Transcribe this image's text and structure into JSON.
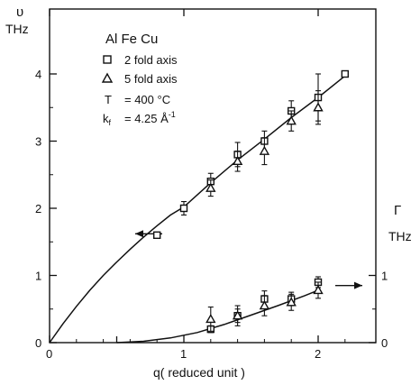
{
  "chart_data": {
    "type": "scatter",
    "title": "",
    "xlabel": "q( reduced unit )",
    "ylabel_left": [
      "υ",
      "THz"
    ],
    "ylabel_right": [
      "Γ",
      "THz"
    ],
    "xlim": [
      0,
      2.4
    ],
    "ylim_left": [
      0,
      4.5
    ],
    "ylim_right": [
      0,
      4.5
    ],
    "x_ticks": [
      {
        "value": 0,
        "label": "0"
      },
      {
        "value": 1,
        "label": "1"
      },
      {
        "value": 2,
        "label": "2"
      }
    ],
    "y_ticks_left": [
      {
        "value": 0,
        "label": "0"
      },
      {
        "value": 1,
        "label": "1"
      },
      {
        "value": 2,
        "label": "2"
      },
      {
        "value": 3,
        "label": "3"
      },
      {
        "value": 4,
        "label": "4"
      }
    ],
    "y_ticks_right": [
      {
        "value": 0,
        "label": "0"
      },
      {
        "value": 1,
        "label": "1"
      }
    ],
    "grid": false,
    "annotations": {
      "material": "Al Fe Cu",
      "legend_title_position": "top-left",
      "temperature_label": "T",
      "temperature_value": "= 400 °C",
      "kf_label": "k",
      "kf_subscript": "f",
      "kf_value": "= 4.25 Å",
      "kf_superscript": "-1"
    },
    "series": [
      {
        "name": "2 fold axis",
        "marker": "square",
        "group": "frequency",
        "points": [
          {
            "x": 0.8,
            "y": 1.6,
            "err": 0
          },
          {
            "x": 1.0,
            "y": 2.0,
            "err": 0.1
          },
          {
            "x": 1.2,
            "y": 2.4,
            "err": 0.12
          },
          {
            "x": 1.4,
            "y": 2.8,
            "err": 0.18
          },
          {
            "x": 1.6,
            "y": 3.0,
            "err": 0.15
          },
          {
            "x": 1.8,
            "y": 3.45,
            "err": 0.15
          },
          {
            "x": 2.0,
            "y": 3.65,
            "err": 0.35
          },
          {
            "x": 2.2,
            "y": 4.0,
            "err": 0
          }
        ]
      },
      {
        "name": "5 fold axis",
        "marker": "triangle",
        "group": "frequency",
        "points": [
          {
            "x": 1.2,
            "y": 2.3,
            "err": 0.12
          },
          {
            "x": 1.4,
            "y": 2.7,
            "err": 0.15
          },
          {
            "x": 1.6,
            "y": 2.85,
            "err": 0.2
          },
          {
            "x": 1.8,
            "y": 3.3,
            "err": 0.15
          },
          {
            "x": 2.0,
            "y": 3.5,
            "err": 0.25
          }
        ]
      },
      {
        "name": "2 fold axis",
        "marker": "square",
        "group": "width",
        "points": [
          {
            "x": 1.2,
            "y": 0.2,
            "err": 0.05
          },
          {
            "x": 1.4,
            "y": 0.4,
            "err": 0.1
          },
          {
            "x": 1.6,
            "y": 0.65,
            "err": 0.12
          },
          {
            "x": 1.8,
            "y": 0.65,
            "err": 0.1
          },
          {
            "x": 2.0,
            "y": 0.9,
            "err": 0.08
          }
        ]
      },
      {
        "name": "5 fold axis",
        "marker": "triangle",
        "group": "width",
        "points": [
          {
            "x": 1.2,
            "y": 0.35,
            "err": 0.18
          },
          {
            "x": 1.4,
            "y": 0.4,
            "err": 0.15
          },
          {
            "x": 1.6,
            "y": 0.55,
            "err": 0.15
          },
          {
            "x": 1.8,
            "y": 0.6,
            "err": 0.12
          },
          {
            "x": 2.0,
            "y": 0.78,
            "err": 0.12
          }
        ]
      }
    ],
    "fit_curves": [
      {
        "group": "frequency",
        "x": [
          0,
          0.1,
          0.2,
          0.3,
          0.4,
          0.5,
          0.6,
          0.7,
          0.8,
          0.9,
          1.0,
          1.2,
          1.4,
          1.6,
          1.8,
          2.0,
          2.2
        ],
        "y": [
          0,
          0.28,
          0.54,
          0.78,
          1.0,
          1.2,
          1.39,
          1.57,
          1.74,
          1.9,
          2.02,
          2.38,
          2.72,
          3.03,
          3.35,
          3.65,
          3.97
        ]
      },
      {
        "group": "width",
        "x": [
          0.5,
          0.7,
          0.9,
          1.1,
          1.3,
          1.5,
          1.7,
          1.9,
          2.0
        ],
        "y": [
          0.0,
          0.02,
          0.07,
          0.15,
          0.27,
          0.41,
          0.55,
          0.7,
          0.78
        ]
      }
    ],
    "arrows": [
      {
        "group": "frequency",
        "direction": "left"
      },
      {
        "group": "width",
        "direction": "right"
      }
    ]
  }
}
